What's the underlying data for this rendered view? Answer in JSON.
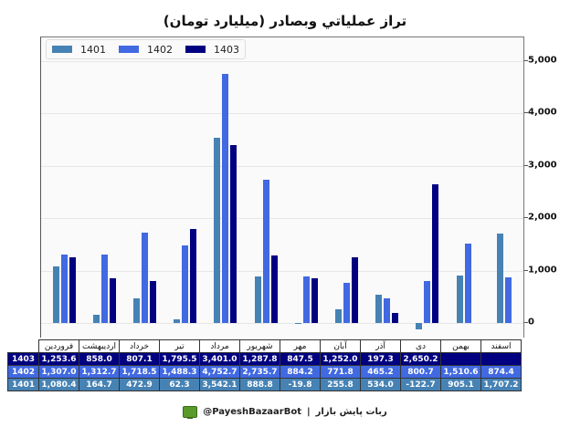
{
  "title": "تراز عملیاتي وبصادر (میلیارد تومان)",
  "footer": {
    "handle": "@PayeshBazaarBot",
    "separator": "|",
    "bot_name": "ربات پایش بازار",
    "icon": "monitor-icon"
  },
  "colors": {
    "1401": "#4682b4",
    "1402": "#4169e1",
    "1403": "#000080"
  },
  "chart_data": {
    "type": "bar",
    "title": "تراز عملیاتي وبصادر (میلیارد تومان)",
    "xlabel": "",
    "ylabel": "",
    "ylim": [
      -300,
      5500
    ],
    "yticks": [
      "0",
      "1,000",
      "2,000",
      "3,000",
      "4,000",
      "5,000"
    ],
    "ytick_values": [
      0,
      1000,
      2000,
      3000,
      4000,
      5000
    ],
    "y_axis_position": "right",
    "grid": true,
    "legend_position": "upper left",
    "categories": [
      "فروردین",
      "اردیبهشت",
      "خرداد",
      "تیر",
      "مرداد",
      "شهریور",
      "مهر",
      "آبان",
      "آذر",
      "دی",
      "بهمن",
      "اسفند"
    ],
    "series": [
      {
        "name": "1401",
        "color": "#4682b4",
        "values": [
          1080.4,
          164.7,
          472.9,
          62.3,
          3542.1,
          888.8,
          -19.8,
          255.8,
          534.0,
          -122.7,
          905.1,
          1707.2
        ]
      },
      {
        "name": "1402",
        "color": "#4169e1",
        "values": [
          1307.0,
          1312.7,
          1718.5,
          1488.3,
          4752.7,
          2735.7,
          884.2,
          771.8,
          465.2,
          800.7,
          1510.6,
          874.4
        ]
      },
      {
        "name": "1403",
        "color": "#000080",
        "values": [
          1253.6,
          858.0,
          807.1,
          1795.5,
          3401.0,
          1287.8,
          847.5,
          1252.0,
          197.3,
          2650.2,
          null,
          null
        ]
      }
    ]
  },
  "table": {
    "headers": [
      "فروردین",
      "اردیبهشت",
      "خرداد",
      "تیر",
      "مرداد",
      "شهریور",
      "مهر",
      "آبان",
      "آذر",
      "دی",
      "بهمن",
      "اسفند"
    ],
    "rows": [
      {
        "label": "1403",
        "color": "#000080",
        "cells": [
          "1,253.6",
          "858.0",
          "807.1",
          "1,795.5",
          "3,401.0",
          "1,287.8",
          "847.5",
          "1,252.0",
          "197.3",
          "2,650.2",
          "",
          ""
        ]
      },
      {
        "label": "1402",
        "color": "#4169e1",
        "cells": [
          "1,307.0",
          "1,312.7",
          "1,718.5",
          "1,488.3",
          "4,752.7",
          "2,735.7",
          "884.2",
          "771.8",
          "465.2",
          "800.7",
          "1,510.6",
          "874.4"
        ]
      },
      {
        "label": "1401",
        "color": "#4682b4",
        "cells": [
          "1,080.4",
          "164.7",
          "472.9",
          "62.3",
          "3,542.1",
          "888.8",
          "-19.8",
          "255.8",
          "534.0",
          "-122.7",
          "905.1",
          "1,707.2"
        ]
      }
    ]
  }
}
